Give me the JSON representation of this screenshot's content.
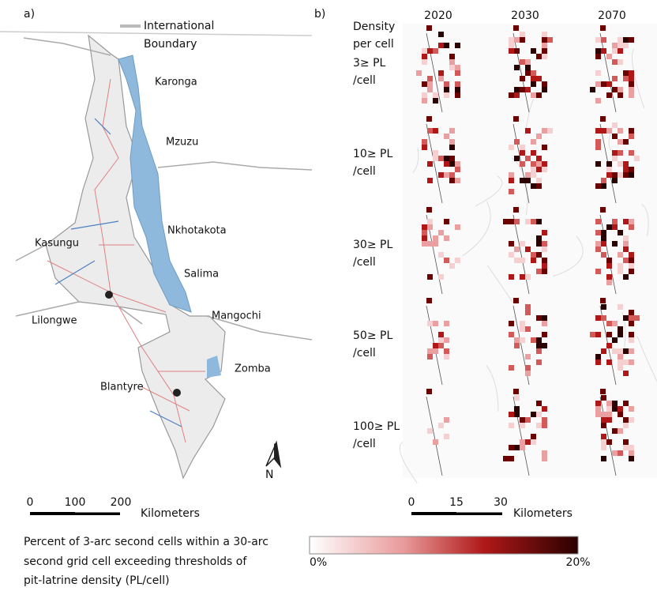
{
  "panel_a": {
    "label": "a)",
    "boundary_legend": [
      "International",
      "Boundary"
    ],
    "cities": [
      "Karonga",
      "Mzuzu",
      "Nkhotakota",
      "Kasungu",
      "Salima",
      "Lilongwe",
      "Mangochi",
      "Zomba",
      "Blantyre"
    ],
    "north": "N",
    "scale": {
      "ticks": [
        "0",
        "100",
        "200"
      ],
      "unit": "Kilometers"
    }
  },
  "panel_b": {
    "label": "b)",
    "header": [
      "Density",
      "per cell"
    ],
    "years": [
      "2020",
      "2030",
      "2070"
    ],
    "rows": [
      [
        "3≥ PL",
        "/cell"
      ],
      [
        "10≥ PL",
        "/cell"
      ],
      [
        "30≥ PL",
        "/cell"
      ],
      [
        "50≥ PL",
        "/cell"
      ],
      [
        "100≥ PL",
        "/cell"
      ]
    ],
    "scale": {
      "ticks": [
        "0",
        "15",
        "30"
      ],
      "unit": "Kilometers"
    }
  },
  "colorbar": {
    "caption": [
      "Percent of 3-arc second cells within a 30-arc",
      "second grid cell exceeding thresholds of",
      "pit-latrine density (PL/cell)"
    ],
    "min": "0%",
    "max": "20%"
  }
}
